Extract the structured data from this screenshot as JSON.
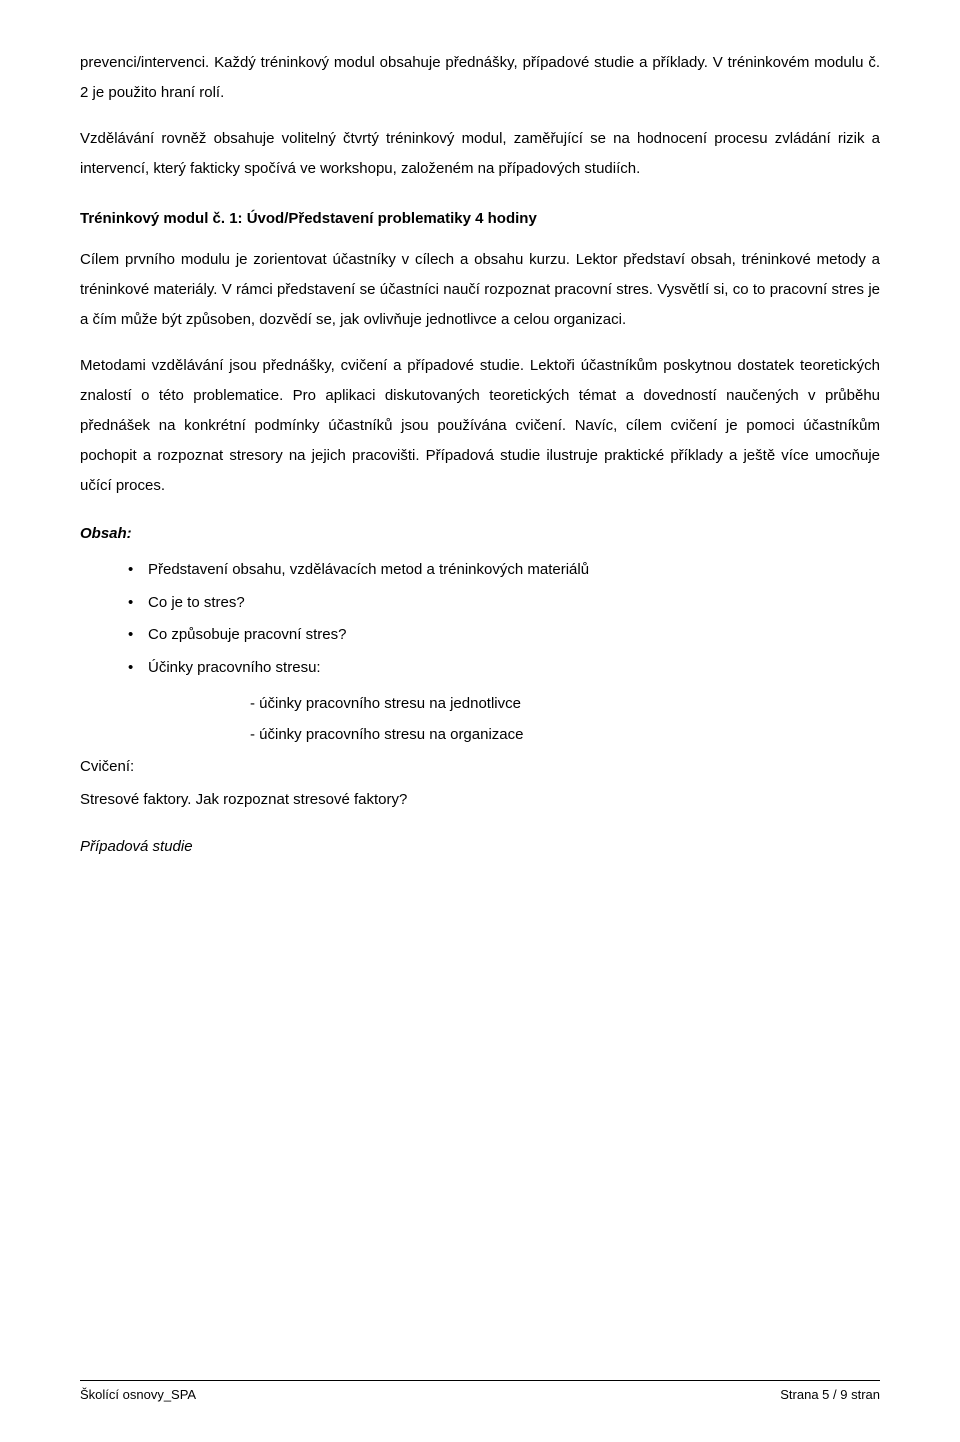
{
  "intro": {
    "p1": "prevenci/intervenci. Každý tréninkový modul obsahuje přednášky, případové studie a příklady. V tréninkovém modulu č. 2 je použito hraní rolí.",
    "p2": "Vzdělávání rovněž obsahuje volitelný čtvrtý tréninkový modul, zaměřující se na hodnocení procesu zvládání rizik a intervencí, který fakticky spočívá ve workshopu, založeném na případových studiích."
  },
  "module": {
    "heading": "Tréninkový modul č. 1:  Úvod/Představení problematiky   4 hodiny",
    "p1": "Cílem prvního modulu je zorientovat účastníky v cílech a obsahu kurzu. Lektor představí obsah, tréninkové metody a tréninkové materiály. V rámci představení se účastníci naučí rozpoznat pracovní stres. Vysvětlí si, co to pracovní stres je a čím může být způsoben, dozvědí se, jak ovlivňuje jednotlivce a celou organizaci.",
    "p2": "Metodami vzdělávání jsou přednášky, cvičení a případové studie. Lektoři účastníkům poskytnou dostatek teoretických znalostí o této problematice. Pro aplikaci diskutovaných teoretických témat a dovedností naučených v průběhu přednášek na konkrétní podmínky účastníků jsou používána cvičení. Navíc, cílem cvičení je pomoci účastníkům pochopit a rozpoznat stresory na jejich pracovišti. Případová studie ilustruje praktické příklady a ještě více umocňuje učící proces."
  },
  "content": {
    "label": "Obsah:",
    "bullets": [
      "Představení obsahu, vzdělávacích metod a tréninkových materiálů",
      "Co je to stres?",
      "Co způsobuje pracovní stres?",
      "Účinky pracovního stresu:"
    ],
    "sub1": "- účinky pracovního stresu na jednotlivce",
    "sub2": "- účinky pracovního stresu na organizace",
    "exercise_label": "Cvičení:",
    "exercise_text": "Stresové faktory.  Jak rozpoznat stresové faktory?",
    "case_study": "Případová studie"
  },
  "footer": {
    "left": "Školící osnovy_SPA",
    "right": "Strana 5 / 9 stran"
  }
}
